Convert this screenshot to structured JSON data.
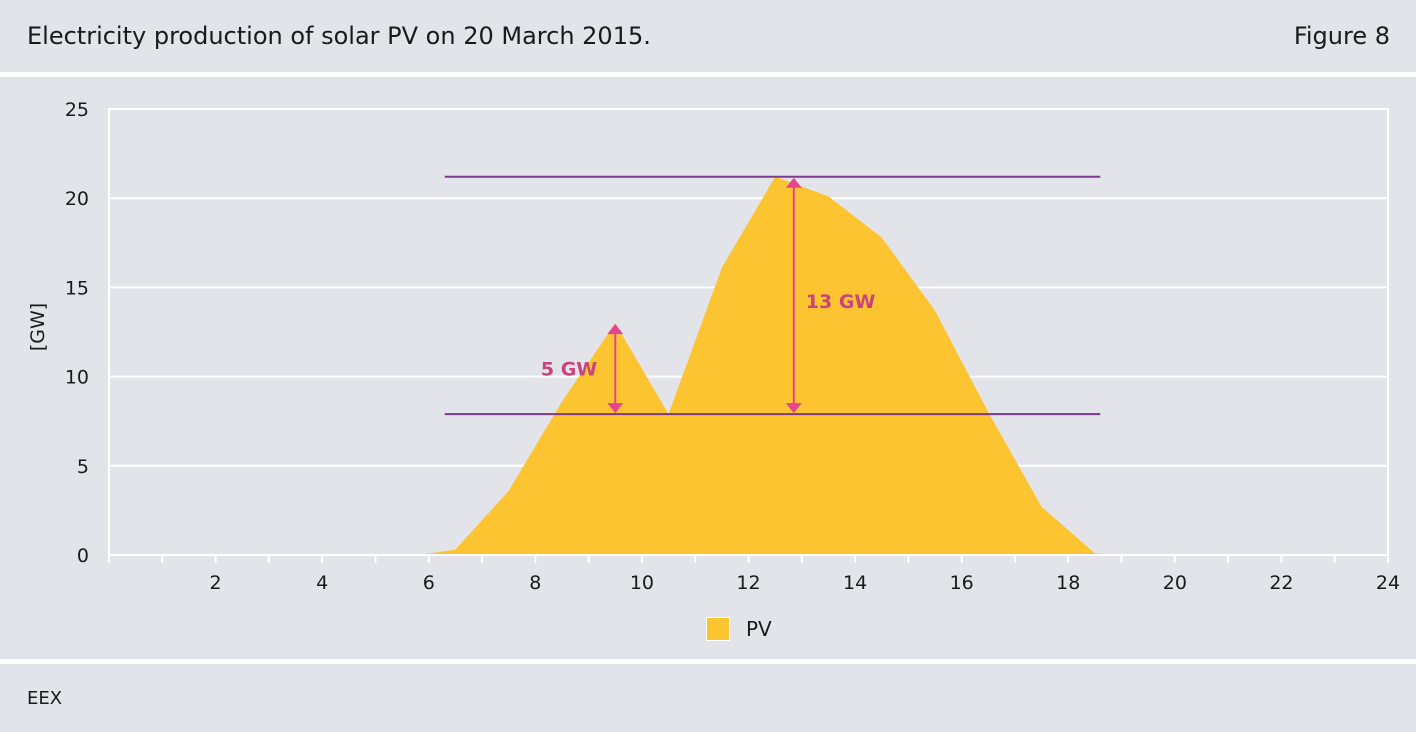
{
  "header": {
    "title": "Electricity production of solar PV on 20 March 2015.",
    "figure_label": "Figure 8"
  },
  "source": "EEX",
  "colors": {
    "pv_fill": "#fdc432",
    "reference_line": "#7b3a8c",
    "arrow": "#e5458f",
    "annotation_text": "#c9447f",
    "background": "#e3e4e9",
    "grid": "#ffffff"
  },
  "chart_data": {
    "type": "area",
    "title": "Electricity production of solar PV on 20 March 2015.",
    "xlabel": "",
    "ylabel": "[GW]",
    "xlim": [
      0,
      24
    ],
    "ylim": [
      0,
      25
    ],
    "x_ticks": [
      2,
      4,
      6,
      8,
      10,
      12,
      14,
      16,
      18,
      20,
      22,
      24
    ],
    "y_ticks": [
      0,
      5,
      10,
      15,
      20,
      25
    ],
    "grid": true,
    "legend_position": "bottom-center",
    "series": [
      {
        "name": "PV",
        "x": [
          5.8,
          6.5,
          7.5,
          8.5,
          9.5,
          10.5,
          11.5,
          12.5,
          13.5,
          14.5,
          15.5,
          16.5,
          17.5,
          18.5,
          19.0
        ],
        "values": [
          0.0,
          0.3,
          3.6,
          8.6,
          13.0,
          7.9,
          16.1,
          21.2,
          20.1,
          17.8,
          13.7,
          8.0,
          2.7,
          0.1,
          0.0
        ]
      }
    ],
    "reference_lines": [
      {
        "y": 21.2,
        "x_start": 6.3,
        "x_end": 18.6
      },
      {
        "y": 7.9,
        "x_start": 6.3,
        "x_end": 18.6
      }
    ],
    "annotations": [
      {
        "label": "5 GW",
        "x": 9.5,
        "y_from": 7.9,
        "y_to": 13.0
      },
      {
        "label": "13 GW",
        "x": 12.85,
        "y_from": 7.9,
        "y_to": 21.2
      }
    ]
  }
}
